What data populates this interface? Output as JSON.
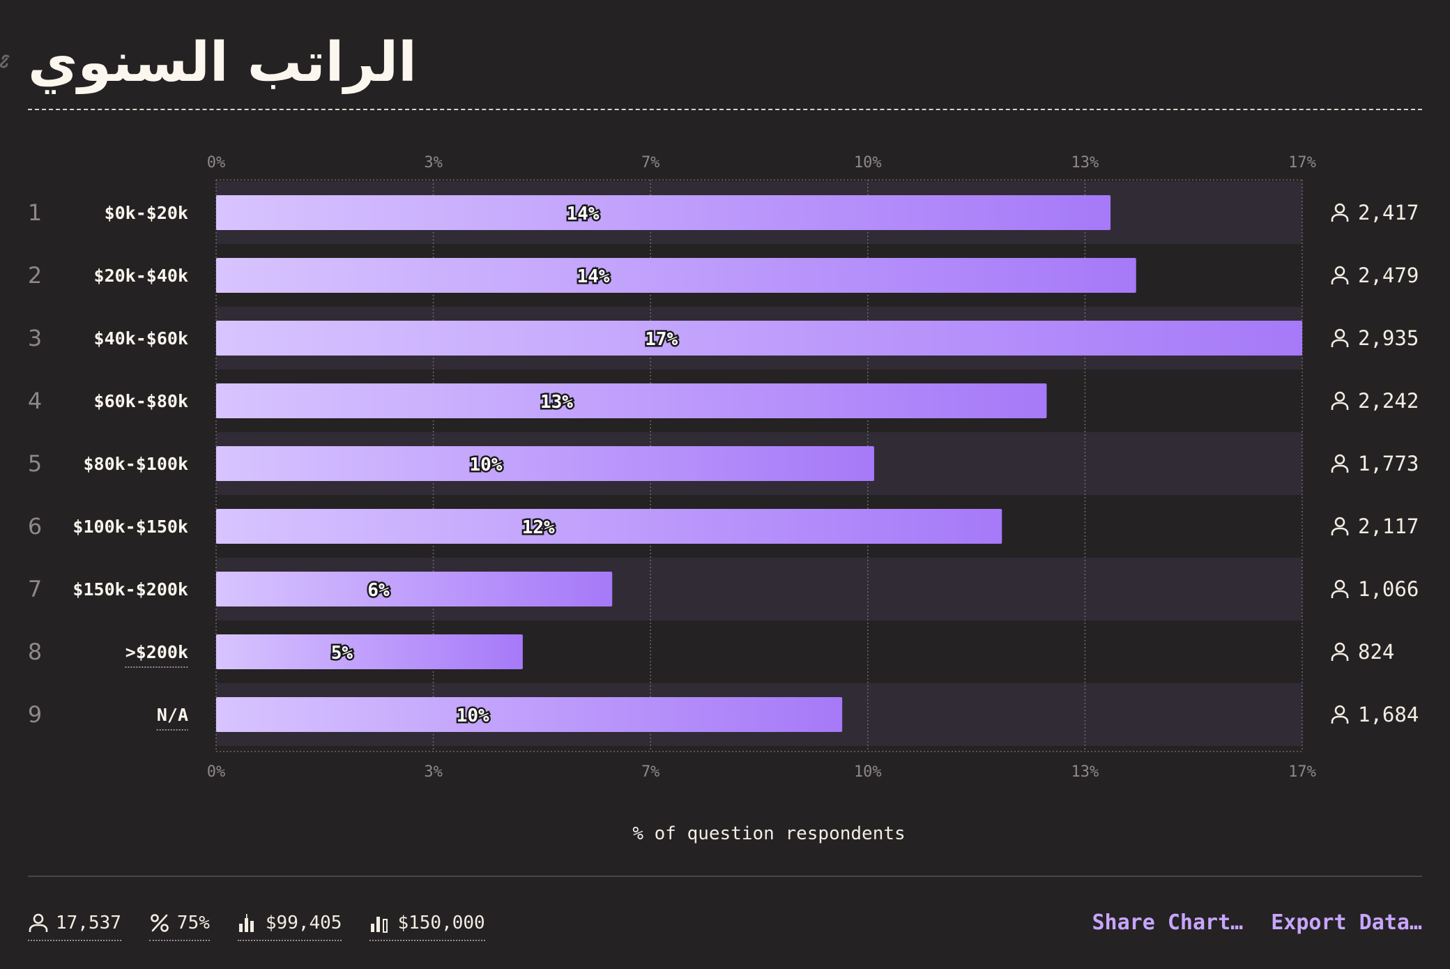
{
  "page": {
    "title": "الراتب السنوي",
    "link_icon": "link-icon"
  },
  "chart_data": {
    "type": "bar",
    "orientation": "horizontal",
    "xlabel": "% of question respondents",
    "xlim": [
      0,
      17
    ],
    "x_ticks": [
      "0%",
      "3%",
      "7%",
      "10%",
      "13%",
      "17%"
    ],
    "grid": true,
    "rows": [
      {
        "rank": "1",
        "label": "$0k-$20k",
        "value": 14,
        "value_label": "14%",
        "count": "2,417",
        "underlined": false
      },
      {
        "rank": "2",
        "label": "$20k-$40k",
        "value": 14.4,
        "value_label": "14%",
        "count": "2,479",
        "underlined": false
      },
      {
        "rank": "3",
        "label": "$40k-$60k",
        "value": 17,
        "value_label": "17%",
        "count": "2,935",
        "underlined": false
      },
      {
        "rank": "4",
        "label": "$60k-$80k",
        "value": 13,
        "value_label": "13%",
        "count": "2,242",
        "underlined": false
      },
      {
        "rank": "5",
        "label": "$80k-$100k",
        "value": 10.3,
        "value_label": "10%",
        "count": "1,773",
        "underlined": false
      },
      {
        "rank": "6",
        "label": "$100k-$150k",
        "value": 12.3,
        "value_label": "12%",
        "count": "2,117",
        "underlined": false
      },
      {
        "rank": "7",
        "label": "$150k-$200k",
        "value": 6.2,
        "value_label": "6%",
        "count": "1,066",
        "underlined": false
      },
      {
        "rank": "8",
        "label": ">$200k",
        "value": 4.8,
        "value_label": "5%",
        "count": "824",
        "underlined": true
      },
      {
        "rank": "9",
        "label": "N/A",
        "value": 9.8,
        "value_label": "10%",
        "count": "1,684",
        "underlined": true
      }
    ],
    "colors": {
      "bar_start": "#d8c4ff",
      "bar_end": "#a679f8",
      "stripe": "#312b36"
    }
  },
  "footer": {
    "stats": [
      {
        "icon": "user-icon",
        "value": "17,537"
      },
      {
        "icon": "percent-icon",
        "value": "75%"
      },
      {
        "icon": "average-bars-icon",
        "value": "$99,405"
      },
      {
        "icon": "median-bars-icon",
        "value": "$150,000"
      }
    ],
    "share_label": "Share Chart…",
    "export_label": "Export Data…"
  }
}
